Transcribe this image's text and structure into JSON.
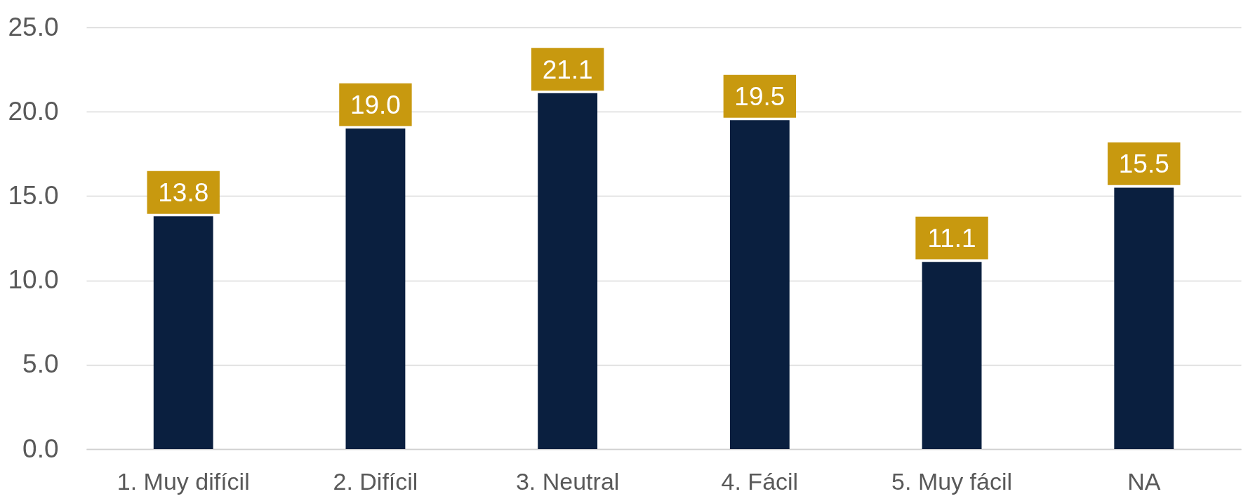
{
  "chart_data": {
    "type": "bar",
    "categories": [
      "1. Muy difícil",
      "2. Difícil",
      "3. Neutral",
      "4. Fácil",
      "5. Muy fácil",
      "NA"
    ],
    "values": [
      13.8,
      19.0,
      21.1,
      19.5,
      11.1,
      15.5
    ],
    "color": "#0a1f3f",
    "ylim": [
      0,
      25
    ],
    "yticks": [
      {
        "value": 0,
        "label": "0.0"
      },
      {
        "value": 5,
        "label": "5.0"
      },
      {
        "value": 10,
        "label": "10.0"
      },
      {
        "value": 15,
        "label": "15.0"
      },
      {
        "value": 20,
        "label": "20.0"
      },
      {
        "value": 25,
        "label": "25.0"
      }
    ],
    "grid": "y",
    "value_labels": [
      "13.8",
      "19.0",
      "21.1",
      "19.5",
      "11.1",
      "15.5"
    ]
  }
}
